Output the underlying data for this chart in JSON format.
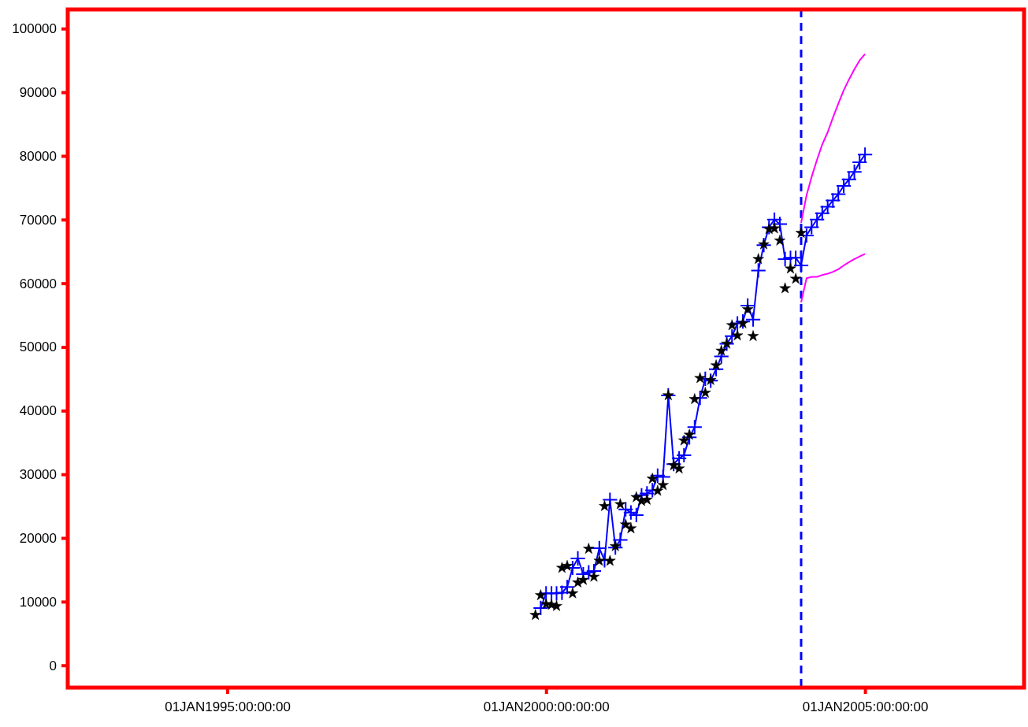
{
  "chart_data": {
    "type": "line",
    "xlim": [
      "1992-07",
      "2007-07"
    ],
    "xticks": [
      {
        "value": "1995-01",
        "label": "01JAN1995:00:00:00"
      },
      {
        "value": "2000-01",
        "label": "01JAN2000:00:00:00"
      },
      {
        "value": "2005-01",
        "label": "01JAN2005:00:00:00"
      }
    ],
    "ylim": [
      -3500,
      103000
    ],
    "yticks": [
      0,
      10000,
      20000,
      30000,
      40000,
      50000,
      60000,
      70000,
      80000,
      90000,
      100000
    ],
    "ref_lines": [
      {
        "axis": "x",
        "value": "2004-01",
        "color": "#0000ff",
        "line_style": "dashed"
      }
    ],
    "series": [
      {
        "type": "scatter",
        "marker": "star",
        "color": "#000000",
        "x": [
          "1999-11",
          "1999-12",
          "2000-01",
          "2000-02",
          "2000-03",
          "2000-04",
          "2000-05",
          "2000-06",
          "2000-07",
          "2000-08",
          "2000-09",
          "2000-10",
          "2000-11",
          "2000-12",
          "2001-01",
          "2001-02",
          "2001-03",
          "2001-04",
          "2001-05",
          "2001-06",
          "2001-07",
          "2001-08",
          "2001-09",
          "2001-10",
          "2001-11",
          "2001-12",
          "2002-01",
          "2002-02",
          "2002-03",
          "2002-04",
          "2002-05",
          "2002-06",
          "2002-07",
          "2002-08",
          "2002-09",
          "2002-10",
          "2002-11",
          "2002-12",
          "2003-01",
          "2003-02",
          "2003-03",
          "2003-04",
          "2003-05",
          "2003-06",
          "2003-07",
          "2003-08",
          "2003-09",
          "2003-10",
          "2003-11",
          "2003-12",
          "2004-01"
        ],
        "values": [
          7900,
          11000,
          9600,
          9500,
          9300,
          15300,
          15600,
          11300,
          13000,
          13400,
          18300,
          13900,
          16400,
          25000,
          16400,
          18700,
          25300,
          22100,
          21500,
          26400,
          25800,
          26000,
          29300,
          27400,
          28300,
          42400,
          31400,
          30900,
          35300,
          36200,
          41800,
          45100,
          42800,
          44800,
          47100,
          49400,
          50500,
          53400,
          51800,
          53700,
          55900,
          51700,
          63800,
          66100,
          68500,
          68600,
          66700,
          59200,
          62300,
          60700,
          67900
        ]
      },
      {
        "marker": "cross",
        "line_style": "solid",
        "color": "#0000ff",
        "x": [
          "1999-12",
          "2000-01",
          "2000-02",
          "2000-03",
          "2000-04",
          "2000-05",
          "2000-06",
          "2000-07",
          "2000-08",
          "2000-09",
          "2000-10",
          "2000-11",
          "2000-12",
          "2001-01",
          "2001-02",
          "2001-03",
          "2001-04",
          "2001-05",
          "2001-06",
          "2001-07",
          "2001-08",
          "2001-09",
          "2001-10",
          "2001-11",
          "2001-12",
          "2002-01",
          "2002-02",
          "2002-03",
          "2002-04",
          "2002-05",
          "2002-06",
          "2002-07",
          "2002-08",
          "2002-09",
          "2002-10",
          "2002-11",
          "2002-12",
          "2003-01",
          "2003-02",
          "2003-03",
          "2003-04",
          "2003-05",
          "2003-06",
          "2003-07",
          "2003-08",
          "2003-09",
          "2003-10",
          "2003-11",
          "2003-12",
          "2004-01",
          "2004-02",
          "2004-03",
          "2004-04",
          "2004-05",
          "2004-06",
          "2004-07",
          "2004-08",
          "2004-09",
          "2004-10",
          "2004-11",
          "2004-12",
          "2005-01"
        ],
        "values": [
          9000,
          11300,
          11300,
          11300,
          11400,
          12300,
          15300,
          16800,
          14300,
          14600,
          14800,
          18400,
          16500,
          26000,
          18500,
          19700,
          24500,
          24000,
          23600,
          26700,
          27000,
          27500,
          29800,
          29600,
          42400,
          31600,
          32500,
          33000,
          35800,
          37400,
          42000,
          45000,
          44700,
          46500,
          48500,
          50500,
          51700,
          53700,
          54000,
          56500,
          54300,
          62000,
          66000,
          68800,
          70000,
          69300,
          63800,
          64000,
          64000,
          62800,
          67500,
          68800,
          70000,
          71000,
          72000,
          73000,
          74000,
          75300,
          76300,
          77500,
          79000,
          80200
        ]
      },
      {
        "marker": "none",
        "line_style": "solid",
        "color": "#ff00ff",
        "x": [
          "2004-01",
          "2004-02",
          "2004-03",
          "2004-04",
          "2004-05",
          "2004-06",
          "2004-07",
          "2004-08",
          "2004-09",
          "2004-10",
          "2004-11",
          "2004-12",
          "2005-01"
        ],
        "values": [
          69500,
          73800,
          76700,
          79400,
          81800,
          83700,
          86000,
          88200,
          90300,
          92000,
          93600,
          95000,
          96000
        ]
      },
      {
        "marker": "none",
        "line_style": "solid",
        "color": "#ff00ff",
        "x": [
          "2004-01",
          "2004-02",
          "2004-03",
          "2004-04",
          "2004-05",
          "2004-06",
          "2004-07",
          "2004-08",
          "2004-09",
          "2004-10",
          "2004-11",
          "2004-12",
          "2005-01"
        ],
        "values": [
          57000,
          60800,
          61000,
          61000,
          61300,
          61500,
          61800,
          62200,
          62800,
          63300,
          63800,
          64200,
          64600
        ]
      }
    ]
  }
}
